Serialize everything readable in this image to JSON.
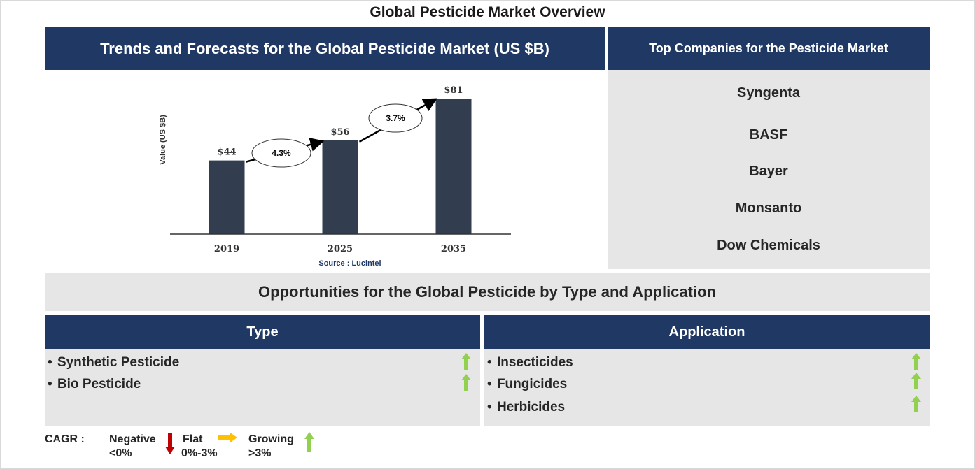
{
  "main_title": "Global Pesticide Market Overview",
  "chart_panel": {
    "header": "Trends and Forecasts for the Global Pesticide Market (US $B)",
    "source": "Source : Lucintel"
  },
  "chart_data": {
    "type": "bar",
    "categories": [
      "2019",
      "2025",
      "2035"
    ],
    "values": [
      44,
      56,
      81
    ],
    "value_labels": [
      "$44",
      "$56",
      "$81"
    ],
    "ylabel": "Value (US $B)",
    "xlabel": "",
    "ylim": [
      0,
      90
    ],
    "grid": false,
    "bar_color": "#323e4f",
    "cagr_annotations": [
      {
        "from": "2019",
        "to": "2025",
        "label": "4.3%"
      },
      {
        "from": "2025",
        "to": "2035",
        "label": "3.7%"
      }
    ]
  },
  "companies_panel": {
    "header": "Top Companies for the Pesticide Market",
    "companies": [
      "Syngenta",
      "BASF",
      "Bayer",
      "Monsanto",
      "Dow Chemicals"
    ]
  },
  "opportunities": {
    "title": "Opportunities for the Global Pesticide by Type and Application",
    "type": {
      "header": "Type",
      "items": [
        {
          "label": "Synthetic Pesticide",
          "trend": "growing"
        },
        {
          "label": "Bio Pesticide",
          "trend": "growing"
        }
      ]
    },
    "application": {
      "header": "Application",
      "items": [
        {
          "label": "Insecticides",
          "trend": "growing"
        },
        {
          "label": "Fungicides",
          "trend": "growing"
        },
        {
          "label": "Herbicides",
          "trend": "growing"
        }
      ]
    }
  },
  "legend": {
    "cagr_label": "CAGR :",
    "negative": {
      "label": "Negative",
      "range": "<0%",
      "icon": "red-down-arrow-icon",
      "color": "#c00000"
    },
    "flat": {
      "label": "Flat",
      "range": "0%-3%",
      "icon": "yellow-right-arrow-icon",
      "color": "#ffc000"
    },
    "growing": {
      "label": "Growing",
      "range": ">3%",
      "icon": "green-up-arrow-icon",
      "color": "#92d050"
    }
  },
  "colors": {
    "navy": "#1f3864",
    "panel_grey": "#e7e6e6"
  }
}
